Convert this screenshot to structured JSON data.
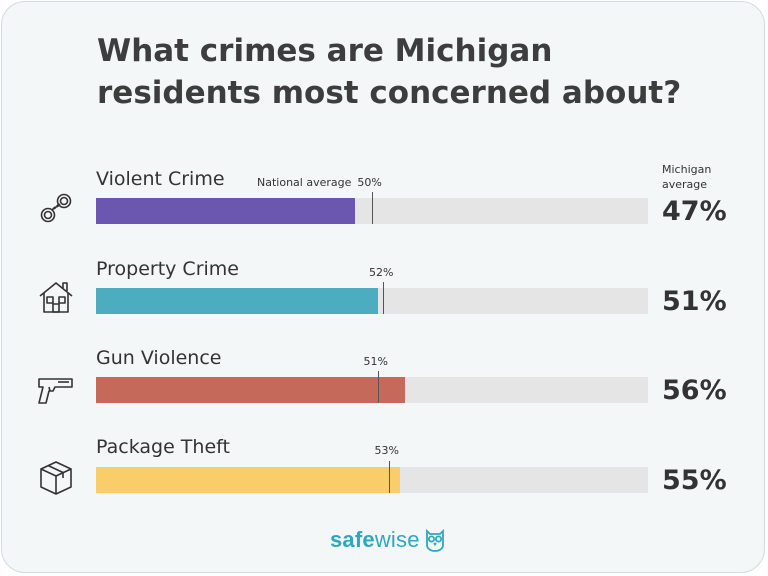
{
  "title": {
    "line1": "What crimes are Michigan",
    "line2": "residents most concerned about?"
  },
  "header": {
    "michigan_line1": "Michigan",
    "michigan_line2": "average"
  },
  "brand": {
    "name_part1": "safe",
    "name_part2": "wise",
    "logo_icon": "owl-icon",
    "color": "#2fa8bd"
  },
  "chart_data": {
    "type": "bar",
    "orientation": "horizontal",
    "title": "What crimes are Michigan residents most concerned about?",
    "xlim": [
      0,
      100
    ],
    "categories": [
      "Violent Crime",
      "Property Crime",
      "Gun Violence",
      "Package Theft"
    ],
    "series": [
      {
        "name": "Michigan average",
        "values": [
          47,
          51,
          56,
          55
        ]
      },
      {
        "name": "National average",
        "values": [
          50,
          52,
          51,
          53
        ]
      }
    ],
    "rows": [
      {
        "label": "Violent Crime",
        "value": 47,
        "value_text": "47%",
        "national": 50,
        "national_text": "50%",
        "national_label": "National average",
        "color": "#6b57b0",
        "icon": "handcuffs-icon"
      },
      {
        "label": "Property Crime",
        "value": 51,
        "value_text": "51%",
        "national": 52,
        "national_text": "52%",
        "national_label": "",
        "color": "#4badbf",
        "icon": "house-icon"
      },
      {
        "label": "Gun Violence",
        "value": 56,
        "value_text": "56%",
        "national": 51,
        "national_text": "51%",
        "national_label": "",
        "color": "#c5695a",
        "icon": "gun-icon"
      },
      {
        "label": "Package Theft",
        "value": 55,
        "value_text": "55%",
        "national": 53,
        "national_text": "53%",
        "national_label": "",
        "color": "#f8cd6a",
        "icon": "package-icon"
      }
    ]
  }
}
